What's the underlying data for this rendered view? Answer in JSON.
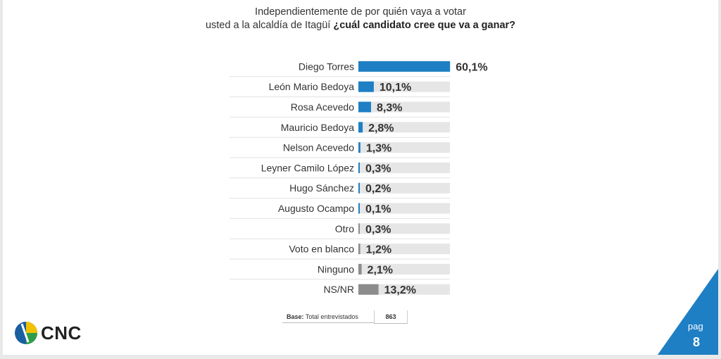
{
  "chart_data": {
    "type": "bar",
    "orientation": "horizontal",
    "title_line1": "Independientemente de por quién vaya a votar",
    "title_line2_normal": "usted a la alcaldía de Itagüí",
    "title_line2_bold": "¿cuál candidato cree que va a ganar?",
    "categories": [
      "Diego Torres",
      "León Mario Bedoya",
      "Rosa Acevedo",
      "Mauricio Bedoya",
      "Nelson Acevedo",
      "Leyner Camilo López",
      "Hugo Sánchez",
      "Augusto Ocampo",
      "Otro",
      "Voto en blanco",
      "Ninguno",
      "NS/NR"
    ],
    "values": [
      60.1,
      10.1,
      8.3,
      2.8,
      1.3,
      0.3,
      0.2,
      0.1,
      0.3,
      1.2,
      2.1,
      13.2
    ],
    "value_labels": [
      "60,1%",
      "10,1%",
      "8,3%",
      "2,8%",
      "1,3%",
      "0,3%",
      "0,2%",
      "0,1%",
      "0,3%",
      "1,2%",
      "2,1%",
      "13,2%"
    ],
    "bar_colors": [
      "#1e7fc4",
      "#1e7fc4",
      "#1e7fc4",
      "#1e7fc4",
      "#1e7fc4",
      "#1e7fc4",
      "#1e7fc4",
      "#1e7fc4",
      "#8c8c8c",
      "#8c8c8c",
      "#8c8c8c",
      "#8c8c8c"
    ],
    "track_color": "#e6e6e6",
    "xlim": [
      0,
      100
    ],
    "grid": false,
    "legend": "none"
  },
  "footer": {
    "base_bold": "Base:",
    "base_text": "Total entrevistados",
    "base_value": "863",
    "logo_text": "CNC",
    "page_label": "pag",
    "page_number": "8"
  }
}
